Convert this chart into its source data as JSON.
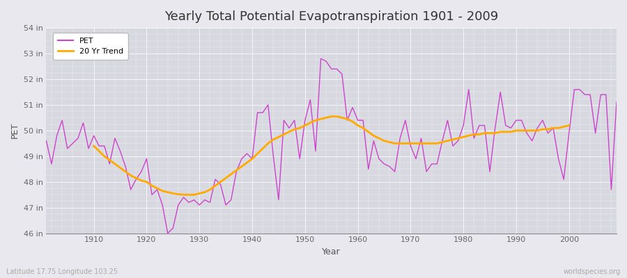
{
  "title": "Yearly Total Potential Evapotranspiration 1901 - 2009",
  "xlabel": "Year",
  "ylabel": "PET",
  "subtitle_left": "Latitude 17.75 Longitude 103.25",
  "subtitle_right": "worldspecies.org",
  "pet_color": "#cc44cc",
  "trend_color": "#ffaa00",
  "bg_color": "#e8e8ee",
  "plot_bg_color": "#d8d8e0",
  "grid_color": "#ffffff",
  "ylim": [
    46,
    54
  ],
  "yticks": [
    46,
    47,
    48,
    49,
    50,
    51,
    52,
    53,
    54
  ],
  "ytick_labels": [
    "46 in",
    "47 in",
    "48 in",
    "49 in",
    "50 in",
    "51 in",
    "52 in",
    "53 in",
    "54 in"
  ],
  "years": [
    1901,
    1902,
    1903,
    1904,
    1905,
    1906,
    1907,
    1908,
    1909,
    1910,
    1911,
    1912,
    1913,
    1914,
    1915,
    1916,
    1917,
    1918,
    1919,
    1920,
    1921,
    1922,
    1923,
    1924,
    1925,
    1926,
    1927,
    1928,
    1929,
    1930,
    1931,
    1932,
    1933,
    1934,
    1935,
    1936,
    1937,
    1938,
    1939,
    1940,
    1941,
    1942,
    1943,
    1944,
    1945,
    1946,
    1947,
    1948,
    1949,
    1950,
    1951,
    1952,
    1953,
    1954,
    1955,
    1956,
    1957,
    1958,
    1959,
    1960,
    1961,
    1962,
    1963,
    1964,
    1965,
    1966,
    1967,
    1968,
    1969,
    1970,
    1971,
    1972,
    1973,
    1974,
    1975,
    1976,
    1977,
    1978,
    1979,
    1980,
    1981,
    1982,
    1983,
    1984,
    1985,
    1986,
    1987,
    1988,
    1989,
    1990,
    1991,
    1992,
    1993,
    1994,
    1995,
    1996,
    1997,
    1998,
    1999,
    2000,
    2001,
    2002,
    2003,
    2004,
    2005,
    2006,
    2007,
    2008,
    2009
  ],
  "pet_values": [
    49.6,
    48.7,
    49.8,
    50.4,
    49.3,
    49.5,
    49.7,
    50.3,
    49.3,
    49.8,
    49.4,
    49.4,
    48.7,
    49.7,
    49.2,
    48.6,
    47.7,
    48.1,
    48.4,
    48.9,
    47.5,
    47.7,
    47.1,
    46.0,
    46.2,
    47.1,
    47.4,
    47.2,
    47.3,
    47.1,
    47.3,
    47.2,
    48.1,
    47.9,
    47.1,
    47.3,
    48.4,
    48.9,
    49.1,
    48.9,
    50.7,
    50.7,
    51.0,
    49.0,
    47.3,
    50.4,
    50.1,
    50.4,
    48.9,
    50.4,
    51.2,
    49.2,
    52.8,
    52.7,
    52.4,
    52.4,
    52.2,
    50.4,
    50.9,
    50.4,
    50.4,
    48.5,
    49.6,
    48.9,
    48.7,
    48.6,
    48.4,
    49.7,
    50.4,
    49.4,
    48.9,
    49.7,
    48.4,
    48.7,
    48.7,
    49.6,
    50.4,
    49.4,
    49.6,
    50.2,
    51.6,
    49.7,
    50.2,
    50.2,
    48.4,
    50.1,
    51.5,
    50.2,
    50.1,
    50.4,
    50.4,
    49.9,
    49.6,
    50.1,
    50.4,
    49.9,
    50.1,
    48.9,
    48.1,
    49.9,
    51.6,
    51.6,
    51.4,
    51.4,
    49.9,
    51.4,
    51.4,
    47.7,
    51.1
  ],
  "trend_years": [
    1910,
    1911,
    1912,
    1913,
    1914,
    1915,
    1916,
    1917,
    1918,
    1919,
    1920,
    1921,
    1922,
    1923,
    1924,
    1925,
    1926,
    1927,
    1928,
    1929,
    1930,
    1931,
    1932,
    1933,
    1934,
    1935,
    1936,
    1937,
    1938,
    1939,
    1940,
    1941,
    1942,
    1943,
    1944,
    1945,
    1946,
    1947,
    1948,
    1949,
    1950,
    1951,
    1952,
    1953,
    1954,
    1955,
    1956,
    1957,
    1958,
    1959,
    1960,
    1961,
    1962,
    1963,
    1964,
    1965,
    1966,
    1967,
    1968,
    1969,
    1970,
    1971,
    1972,
    1973,
    1974,
    1975,
    1976,
    1977,
    1978,
    1979,
    1980,
    1981,
    1982,
    1983,
    1984,
    1985,
    1986,
    1987,
    1988,
    1989,
    1990,
    1991,
    1992,
    1993,
    1994,
    1995,
    1996,
    1997,
    1998,
    1999,
    2000
  ],
  "trend_values": [
    49.4,
    49.2,
    49.0,
    48.85,
    48.7,
    48.55,
    48.4,
    48.25,
    48.15,
    48.05,
    48.0,
    47.85,
    47.75,
    47.65,
    47.6,
    47.55,
    47.52,
    47.5,
    47.5,
    47.5,
    47.55,
    47.6,
    47.7,
    47.85,
    48.0,
    48.15,
    48.3,
    48.45,
    48.6,
    48.75,
    48.9,
    49.1,
    49.3,
    49.5,
    49.65,
    49.75,
    49.85,
    49.95,
    50.05,
    50.1,
    50.2,
    50.3,
    50.4,
    50.45,
    50.5,
    50.55,
    50.55,
    50.5,
    50.45,
    50.35,
    50.2,
    50.1,
    49.95,
    49.8,
    49.7,
    49.6,
    49.55,
    49.5,
    49.5,
    49.5,
    49.5,
    49.5,
    49.5,
    49.5,
    49.5,
    49.5,
    49.55,
    49.6,
    49.65,
    49.7,
    49.75,
    49.8,
    49.85,
    49.85,
    49.9,
    49.9,
    49.9,
    49.95,
    49.95,
    49.95,
    50.0,
    50.0,
    50.0,
    50.0,
    50.0,
    50.05,
    50.05,
    50.1,
    50.1,
    50.15,
    50.2
  ]
}
